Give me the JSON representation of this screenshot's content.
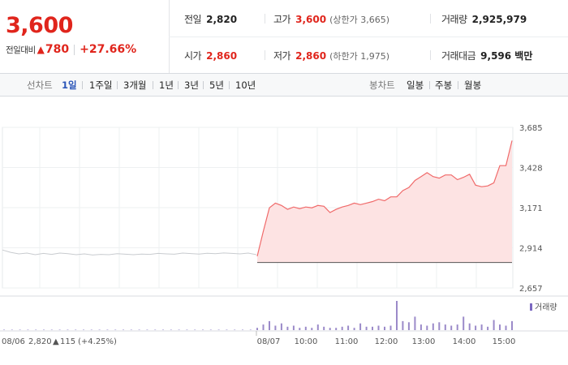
{
  "header": {
    "price": "3,600",
    "change_label": "전일대비",
    "change_value": "780",
    "change_pct": "+27.66%",
    "row1": [
      {
        "label": "전일",
        "value": "2,820",
        "red": false,
        "sub": ""
      },
      {
        "label": "고가",
        "value": "3,600",
        "red": true,
        "sub": "(상한가 3,665)"
      },
      {
        "label": "거래량",
        "value": "2,925,979",
        "red": false,
        "sub": ""
      }
    ],
    "row2": [
      {
        "label": "시가",
        "value": "2,860",
        "red": true,
        "sub": ""
      },
      {
        "label": "저가",
        "value": "2,860",
        "red": true,
        "sub": "(하한가 1,975)"
      },
      {
        "label": "거래대금",
        "value": "9,596 백만",
        "red": false,
        "sub": ""
      }
    ]
  },
  "toolbar": {
    "line_label": "선차트",
    "line_periods": [
      "1일",
      "1주일",
      "3개월",
      "1년",
      "3년",
      "5년",
      "10년"
    ],
    "active_period": "1일",
    "candle_label": "봉차트",
    "candle_periods": [
      "일봉",
      "주봉",
      "월봉"
    ]
  },
  "chart_data": {
    "type": "line",
    "y_ticks": [
      "3,685",
      "3,428",
      "3,171",
      "2,914",
      "2,657"
    ],
    "ylim": [
      2657,
      3685
    ],
    "grid": true,
    "x_labels": [
      "08/07",
      "10:00",
      "11:00",
      "12:00",
      "13:00",
      "14:00",
      "15:00"
    ],
    "prev_close": 2820,
    "prev_day_label": "08/06",
    "prev_day_close": "2,820",
    "prev_day_change": "115",
    "prev_day_pct": "(+4.25%)",
    "prev_day_series": [
      2900,
      2885,
      2875,
      2880,
      2870,
      2878,
      2872,
      2880,
      2876,
      2870,
      2875,
      2868,
      2872,
      2870,
      2876,
      2873,
      2870,
      2874,
      2872,
      2878,
      2875,
      2873,
      2880,
      2877,
      2874,
      2879,
      2876,
      2881,
      2878,
      2875,
      2880,
      2870
    ],
    "series": [
      {
        "x": [
          "09:00",
          "09:05",
          "09:10",
          "09:15",
          "09:20",
          "09:30",
          "09:40",
          "09:50",
          "10:00",
          "10:10",
          "10:20",
          "10:30",
          "10:40",
          "10:50",
          "11:00",
          "11:10",
          "11:20",
          "11:30",
          "11:40",
          "11:50",
          "12:00",
          "12:10",
          "12:20",
          "12:30",
          "12:40",
          "12:50",
          "13:00",
          "13:10",
          "13:20",
          "13:30",
          "13:40",
          "13:50",
          "14:00",
          "14:10",
          "14:20",
          "14:30",
          "14:40",
          "14:50",
          "15:00",
          "15:10",
          "15:20",
          "15:25",
          "15:30"
        ],
        "values": [
          2860,
          3020,
          3170,
          3200,
          3185,
          3160,
          3175,
          3165,
          3175,
          3170,
          3185,
          3180,
          3140,
          3160,
          3175,
          3185,
          3200,
          3190,
          3200,
          3210,
          3225,
          3215,
          3240,
          3240,
          3280,
          3300,
          3345,
          3370,
          3395,
          3370,
          3360,
          3380,
          3380,
          3350,
          3365,
          3385,
          3315,
          3305,
          3310,
          3330,
          3440,
          3440,
          3600
        ]
      }
    ],
    "volume_label": "거래량",
    "volume": [
      2,
      5,
      8,
      4,
      6,
      3,
      4,
      2,
      3,
      2,
      5,
      3,
      2,
      2,
      3,
      4,
      2,
      6,
      3,
      3,
      4,
      3,
      4,
      26,
      8,
      7,
      12,
      5,
      4,
      6,
      7,
      5,
      4,
      5,
      12,
      6,
      4,
      5,
      3,
      9,
      5,
      4,
      8
    ]
  }
}
